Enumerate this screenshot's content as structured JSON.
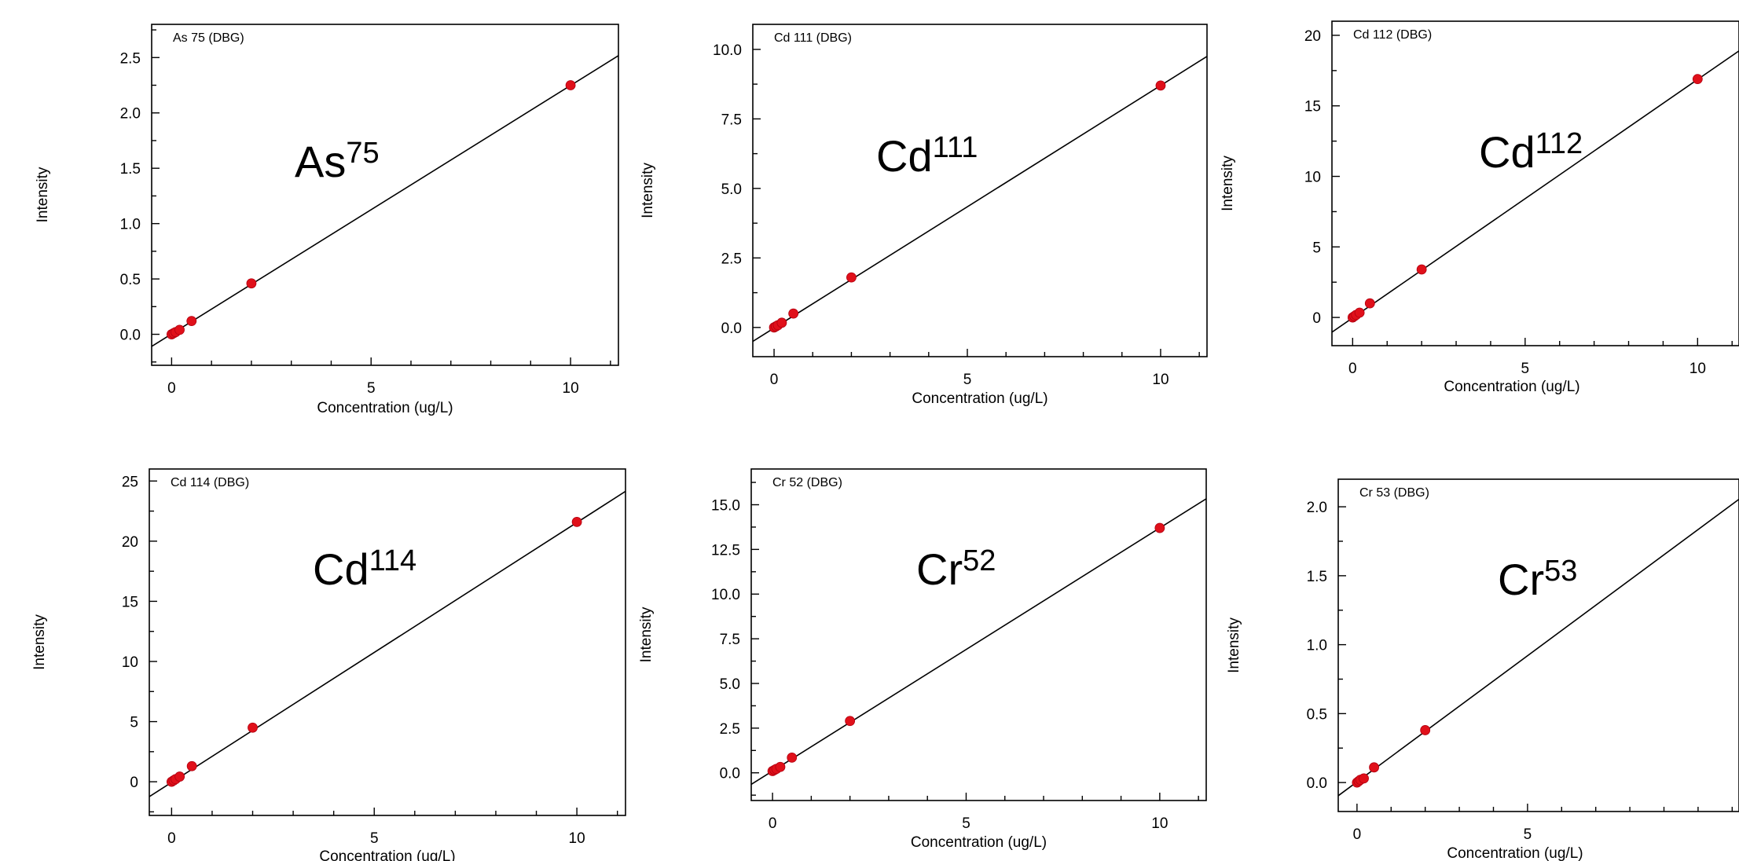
{
  "chart_data": [
    {
      "type": "scatter",
      "corner_label": "As 75 (DBG)",
      "element": "As",
      "isotope": "75",
      "xlabel": "Concentration (ug/L)",
      "ylabel": "Intensity",
      "xlim": [
        -0.5,
        11.2
      ],
      "ylim": [
        -0.28,
        2.8
      ],
      "xticks": [
        0,
        5,
        10
      ],
      "xtick_labels": [
        "0",
        "5",
        "10"
      ],
      "yticks": [
        0,
        0.5,
        1,
        1.5,
        2,
        2.5
      ],
      "ytick_labels": [
        "0.0",
        "0.5",
        "1.0",
        "1.5",
        "2.0",
        "2.5"
      ],
      "points": {
        "x": [
          0,
          0.05,
          0.1,
          0.2,
          0.5,
          2,
          10
        ],
        "y": [
          0.0,
          0.01,
          0.02,
          0.04,
          0.12,
          0.46,
          2.25
        ]
      },
      "fit": {
        "slope": 0.2245,
        "intercept": 0.003
      }
    },
    {
      "type": "scatter",
      "corner_label": "Cd 111 (DBG)",
      "element": "Cd",
      "isotope": "111",
      "xlabel": "Concentration (ug/L)",
      "ylabel": "Intensity",
      "xlim": [
        -0.55,
        11.2
      ],
      "ylim": [
        -1.05,
        10.9
      ],
      "xticks": [
        0,
        5,
        10
      ],
      "xtick_labels": [
        "0",
        "5",
        "10"
      ],
      "yticks": [
        0,
        2.5,
        5,
        7.5,
        10
      ],
      "ytick_labels": [
        "0.0",
        "2.5",
        "5.0",
        "7.5",
        "10.0"
      ],
      "points": {
        "x": [
          0,
          0.05,
          0.1,
          0.2,
          0.5,
          2,
          10
        ],
        "y": [
          0.0,
          0.04,
          0.08,
          0.17,
          0.5,
          1.8,
          8.7
        ]
      },
      "fit": {
        "slope": 0.872,
        "intercept": -0.02
      }
    },
    {
      "type": "scatter",
      "corner_label": "Cd 112 (DBG)",
      "element": "Cd",
      "isotope": "112",
      "xlabel": "Concentration (ug/L)",
      "ylabel": "Intensity",
      "xlim": [
        -0.6,
        11.2
      ],
      "ylim": [
        -2.0,
        21.0
      ],
      "xticks": [
        0,
        5,
        10
      ],
      "xtick_labels": [
        "0",
        "5",
        "10"
      ],
      "yticks": [
        0,
        5,
        10,
        15,
        20
      ],
      "ytick_labels": [
        "0",
        "5",
        "10",
        "15",
        "20"
      ],
      "points": {
        "x": [
          0,
          0.05,
          0.1,
          0.2,
          0.5,
          2,
          10
        ],
        "y": [
          0.0,
          0.09,
          0.18,
          0.34,
          1.0,
          3.4,
          16.9
        ]
      },
      "fit": {
        "slope": 1.69,
        "intercept": -0.03
      }
    },
    {
      "type": "scatter",
      "corner_label": "Cd 114 (DBG)",
      "element": "Cd",
      "isotope": "114",
      "xlabel": "Concentration (ug/L)",
      "ylabel": "Intensity",
      "xlim": [
        -0.55,
        11.2
      ],
      "ylim": [
        -2.8,
        26.0
      ],
      "xticks": [
        0,
        5,
        10
      ],
      "xtick_labels": [
        "0",
        "5",
        "10"
      ],
      "yticks": [
        0,
        5,
        10,
        15,
        20,
        25
      ],
      "ytick_labels": [
        "0",
        "5",
        "10",
        "15",
        "20",
        "25"
      ],
      "points": {
        "x": [
          0,
          0.05,
          0.1,
          0.2,
          0.5,
          2,
          10
        ],
        "y": [
          0.0,
          0.11,
          0.22,
          0.43,
          1.3,
          4.5,
          21.6
        ]
      },
      "fit": {
        "slope": 2.16,
        "intercept": -0.05
      }
    },
    {
      "type": "scatter",
      "corner_label": "Cr 52 (DBG)",
      "element": "Cr",
      "isotope": "52",
      "xlabel": "Concentration (ug/L)",
      "ylabel": "Intensity",
      "xlim": [
        -0.55,
        11.2
      ],
      "ylim": [
        -1.55,
        17.0
      ],
      "xticks": [
        0,
        5,
        10
      ],
      "xtick_labels": [
        "0",
        "5",
        "10"
      ],
      "yticks": [
        0,
        2.5,
        5,
        7.5,
        10,
        12.5,
        15
      ],
      "ytick_labels": [
        "0.0",
        "2.5",
        "5.0",
        "7.5",
        "10.0",
        "12.5",
        "15.0"
      ],
      "points": {
        "x": [
          0,
          0.05,
          0.1,
          0.2,
          0.5,
          2,
          10
        ],
        "y": [
          0.1,
          0.16,
          0.22,
          0.33,
          0.85,
          2.9,
          13.7
        ]
      },
      "fit": {
        "slope": 1.36,
        "intercept": 0.1
      }
    },
    {
      "type": "scatter",
      "corner_label": "Cr 53 (DBG)",
      "element": "Cr",
      "isotope": "53",
      "xlabel": "Concentration (ug/L)",
      "ylabel": "Intensity",
      "xlim": [
        -0.55,
        11.2
      ],
      "ylim": [
        -0.21,
        2.2
      ],
      "xticks": [
        0,
        5
      ],
      "xtick_labels": [
        "0",
        "5"
      ],
      "yticks": [
        0,
        0.5,
        1,
        1.5,
        2
      ],
      "ytick_labels": [
        "0.0",
        "0.5",
        "1.0",
        "1.5",
        "2.0"
      ],
      "points": {
        "x": [
          0,
          0.05,
          0.1,
          0.2,
          0.5,
          2
        ],
        "y": [
          0.0,
          0.01,
          0.02,
          0.03,
          0.11,
          0.38
        ]
      },
      "fit": {
        "slope": 0.183,
        "intercept": 0.005
      }
    }
  ]
}
